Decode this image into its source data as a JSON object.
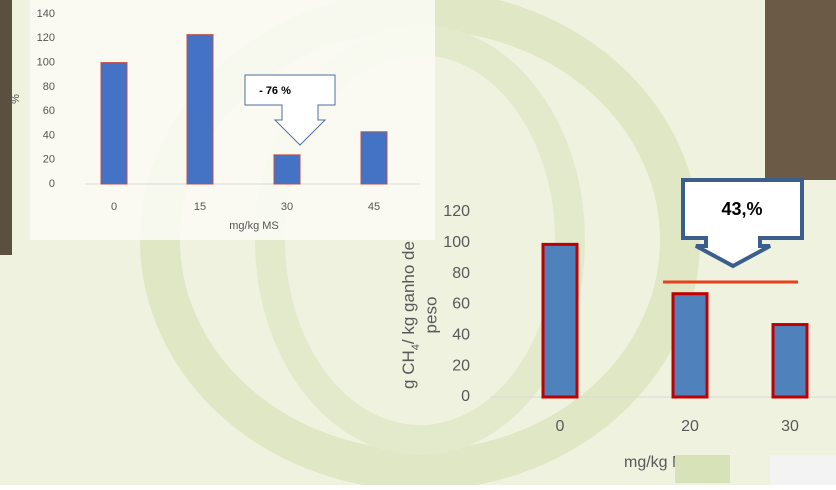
{
  "charts": [
    {
      "type": "bar",
      "y_label": "%",
      "x_label": "mg/kg MS",
      "categories": [
        "0",
        "15",
        "30",
        "45"
      ],
      "values": [
        100,
        123,
        24,
        43
      ],
      "ylim": [
        0,
        140
      ],
      "yticks": [
        0,
        20,
        40,
        60,
        80,
        100,
        120,
        140
      ],
      "color": "#4472c4",
      "annotation": "- 76 %"
    },
    {
      "type": "bar",
      "y_label": [
        "g CH",
        "4",
        "/ kg ganho de",
        "peso"
      ],
      "x_label": "mg/kg MS",
      "categories": [
        "0",
        "20",
        "30"
      ],
      "values": [
        99,
        67,
        47
      ],
      "ylim": [
        0,
        120
      ],
      "yticks": [
        0,
        20,
        40,
        60,
        80,
        100,
        120
      ],
      "color": "#4f81bd",
      "annotation": "43,%"
    }
  ]
}
